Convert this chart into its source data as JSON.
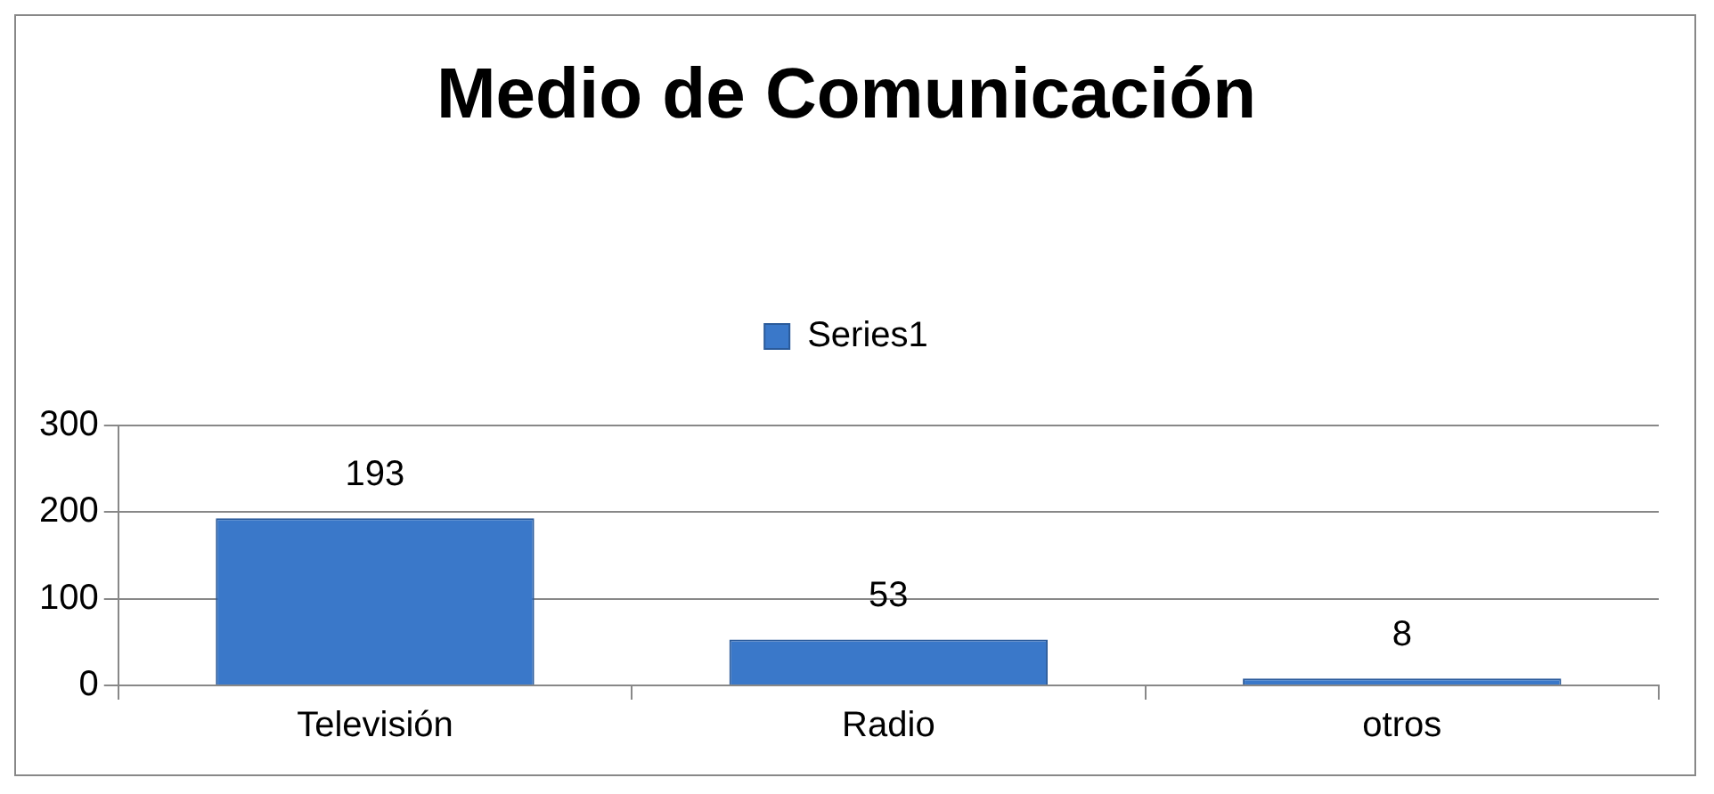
{
  "chart_data": {
    "type": "bar",
    "title": "Medio de Comunicación",
    "categories": [
      "Televisión",
      "Radio",
      "otros"
    ],
    "series": [
      {
        "name": "Series1",
        "color": "#3a78c9",
        "values": [
          193,
          53,
          8
        ]
      }
    ],
    "ylim": [
      0,
      300
    ],
    "yticks": [
      0,
      100,
      200,
      300
    ],
    "grid": "y",
    "legend": "top",
    "data_labels": true
  }
}
